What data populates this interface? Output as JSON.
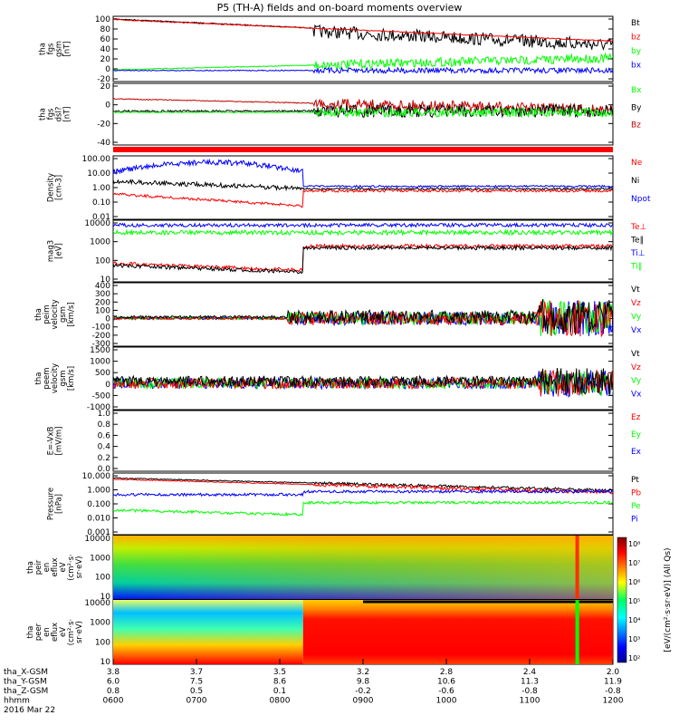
{
  "title": "P5 (TH-A) fields and on-board moments overview",
  "colors": {
    "black": "#000000",
    "red": "#ff0000",
    "green": "#00ff00",
    "blue": "#0000ff",
    "darkred": "#c00000",
    "panel_bg": "#ffffff"
  },
  "footer": {
    "row_labels": [
      "tha_X-GSM",
      "tha_Y-GSM",
      "tha_Z-GSM",
      "hhmm",
      "2016 Mar 22"
    ],
    "ticks": [
      {
        "x": "3.8",
        "y": "6.0",
        "z": "0.8",
        "t": "0600"
      },
      {
        "x": "3.7",
        "y": "7.5",
        "z": "0.5",
        "t": "0700"
      },
      {
        "x": "3.5",
        "y": "8.6",
        "z": "0.1",
        "t": "0800"
      },
      {
        "x": "3.2",
        "y": "9.8",
        "z": "-0.2",
        "t": "0900"
      },
      {
        "x": "2.8",
        "y": "10.6",
        "z": "-0.6",
        "t": "1000"
      },
      {
        "x": "2.4",
        "y": "11.3",
        "z": "-0.8",
        "t": "1100"
      },
      {
        "x": "2.0",
        "y": "11.9",
        "z": "-0.8",
        "t": "1200"
      }
    ]
  },
  "panels": [
    {
      "key": "fgs",
      "ylabel": [
        "tha",
        "fgs",
        "gsm",
        "[nT]"
      ],
      "yticks": [
        "100",
        "80",
        "60",
        "40",
        "20",
        "0",
        "-20"
      ],
      "ymin": -20,
      "ymax": 100,
      "legend": [
        {
          "t": "Bt",
          "c": "black"
        },
        {
          "t": "bz",
          "c": "red"
        },
        {
          "t": "by",
          "c": "green"
        },
        {
          "t": "bx",
          "c": "blue"
        }
      ]
    },
    {
      "key": "fgs_dsl",
      "ylabel": [
        "tha",
        "fgs",
        "dsl?",
        "[nT]"
      ],
      "yticks": [
        "20",
        "0",
        "-20",
        "-40"
      ],
      "ymin": -50,
      "ymax": 30,
      "legend": [
        {
          "t": "Bx",
          "c": "green"
        },
        {
          "t": "By",
          "c": "black"
        },
        {
          "t": "Bz",
          "c": "darkred"
        }
      ]
    },
    {
      "key": "density",
      "ylabel": [
        "Density",
        "[cm-3]"
      ],
      "yticks": [
        "100.00",
        "10.00",
        "1.00",
        "0.10",
        "0.01"
      ],
      "log": true,
      "ymin": 0.005,
      "ymax": 150,
      "legend": [
        {
          "t": "Ne",
          "c": "red"
        },
        {
          "t": "Ni",
          "c": "black"
        },
        {
          "t": "Npot",
          "c": "blue"
        }
      ]
    },
    {
      "key": "temp",
      "ylabel": [
        "mag3",
        "[eV]"
      ],
      "yticks": [
        "10000",
        "1000",
        "100",
        "10"
      ],
      "log": true,
      "ymin": 8,
      "ymax": 12000,
      "legend": [
        {
          "t": "Te⊥",
          "c": "red"
        },
        {
          "t": "Te∥",
          "c": "black"
        },
        {
          "t": "Ti⊥",
          "c": "blue"
        },
        {
          "t": "Ti∥",
          "c": "green"
        }
      ]
    },
    {
      "key": "vi",
      "ylabel": [
        "tha",
        "peim",
        "velocity",
        "gsm",
        "[km/s]"
      ],
      "yticks": [
        "400",
        "300",
        "200",
        "100",
        "0",
        "-100",
        "-200",
        "-300"
      ],
      "ymin": -300,
      "ymax": 400,
      "legend": [
        {
          "t": "Vt",
          "c": "black"
        },
        {
          "t": "Vz",
          "c": "red"
        },
        {
          "t": "Vy",
          "c": "green"
        },
        {
          "t": "Vx",
          "c": "blue"
        }
      ]
    },
    {
      "key": "ve",
      "ylabel": [
        "tha",
        "peem",
        "velocity",
        "gsm",
        "[km/s]"
      ],
      "yticks": [
        "1500",
        "1000",
        "500",
        "0",
        "-500",
        "-1000"
      ],
      "ymin": -1000,
      "ymax": 1500,
      "legend": [
        {
          "t": "Vt",
          "c": "black"
        },
        {
          "t": "Vz",
          "c": "red"
        },
        {
          "t": "Vy",
          "c": "green"
        },
        {
          "t": "Vx",
          "c": "blue"
        }
      ]
    },
    {
      "key": "efield",
      "ylabel": [
        "E=-VxB",
        "[mV/m]"
      ],
      "yticks": [
        "1.0",
        "0.8",
        "0.6",
        "0.4",
        "0.2",
        "0.0"
      ],
      "ymin": 0,
      "ymax": 1,
      "legend": [
        {
          "t": "Ez",
          "c": "red"
        },
        {
          "t": "Ey",
          "c": "green"
        },
        {
          "t": "Ex",
          "c": "blue"
        }
      ]
    },
    {
      "key": "pressure",
      "ylabel": [
        "Pressure",
        "[nPa]"
      ],
      "yticks": [
        "10.000",
        "1.000",
        "0.100",
        "0.010",
        "0.001"
      ],
      "log": true,
      "ymin": 0.0008,
      "ymax": 12,
      "legend": [
        {
          "t": "Pt",
          "c": "black"
        },
        {
          "t": "Pb",
          "c": "red"
        },
        {
          "t": "Pe",
          "c": "green"
        },
        {
          "t": "Pi",
          "c": "blue"
        }
      ]
    },
    {
      "key": "ispec",
      "ylabel": [
        "tha",
        "peir",
        "en",
        "eflux",
        "eV",
        "(cm²·s·",
        "sr·eV)"
      ],
      "yticks": [
        "10000",
        "1000",
        "100",
        "10"
      ],
      "spectrogram": true
    },
    {
      "key": "espec",
      "ylabel": [
        "tha",
        "peer",
        "en",
        "eflux",
        "eV",
        "(cm²·s·",
        "sr·eV)"
      ],
      "yticks": [
        "10000",
        "1000",
        "100",
        "10"
      ],
      "spectrogram": true
    }
  ],
  "colorbar": {
    "label": "[eV/(cm²·s·sr·eV)] (All Qs)",
    "ticks": [
      "10⁸",
      "10⁷",
      "10⁶",
      "10⁵",
      "10⁴",
      "10³",
      "10²"
    ]
  }
}
